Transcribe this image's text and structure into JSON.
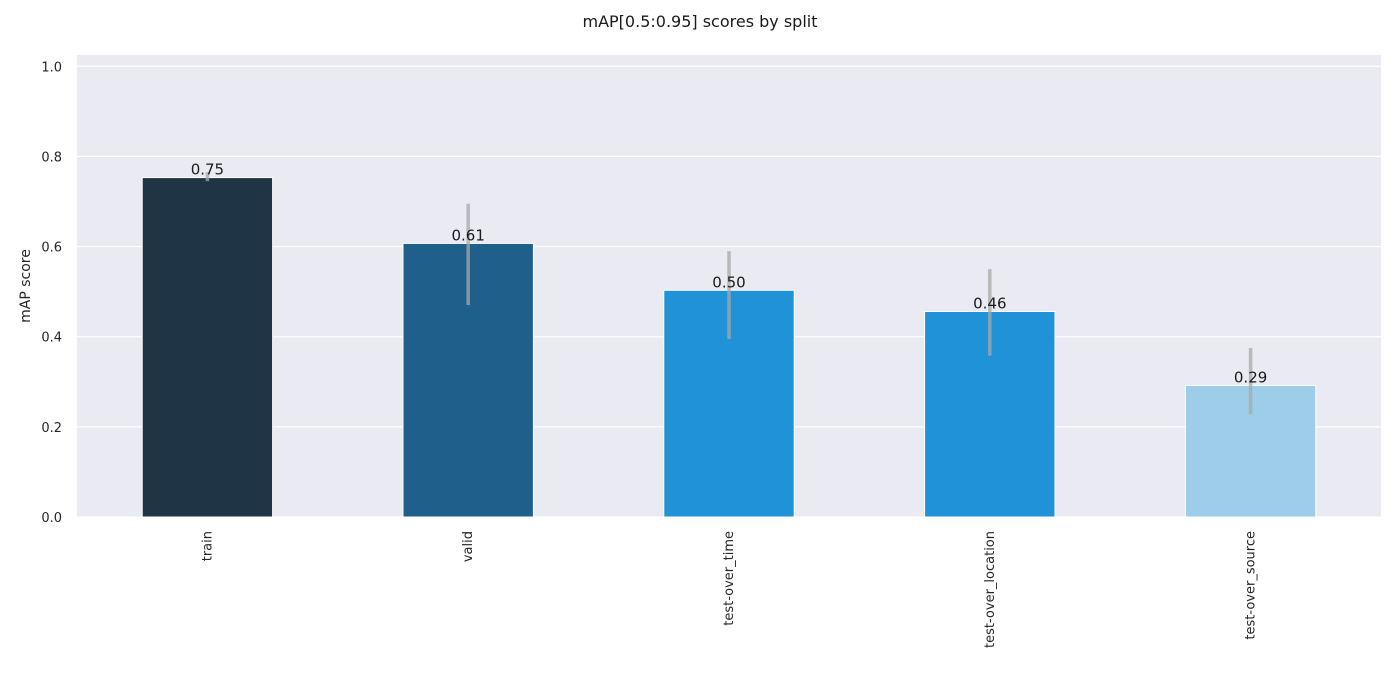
{
  "chart_data": {
    "type": "bar",
    "title": "mAP[0.5:0.95] scores by split",
    "xlabel": "",
    "ylabel": "mAP score",
    "categories": [
      "train",
      "valid",
      "test-over_time",
      "test-over_location",
      "test-over_source"
    ],
    "values": [
      0.753,
      0.607,
      0.503,
      0.456,
      0.292
    ],
    "value_labels": [
      "0.75",
      "0.61",
      "0.50",
      "0.46",
      "0.29"
    ],
    "error_bars": [
      [
        0.745,
        0.765
      ],
      [
        0.47,
        0.695
      ],
      [
        0.395,
        0.59
      ],
      [
        0.358,
        0.55
      ],
      [
        0.228,
        0.375
      ]
    ],
    "bar_colors": [
      "#1f3545",
      "#1e5f8b",
      "#2092d8",
      "#2092d8",
      "#9ecde9"
    ],
    "ylim": [
      0,
      1.025
    ],
    "yticks": [
      0.0,
      0.2,
      0.4,
      0.6,
      0.8,
      1.0
    ],
    "ytick_labels": [
      "0.0",
      "0.2",
      "0.4",
      "0.6",
      "0.8",
      "1.0"
    ],
    "grid": true,
    "legend": "none",
    "colors": {
      "plot_background": "#eaeaf2",
      "grid": "#ffffff",
      "error_bar": "#a8a8a8"
    }
  }
}
